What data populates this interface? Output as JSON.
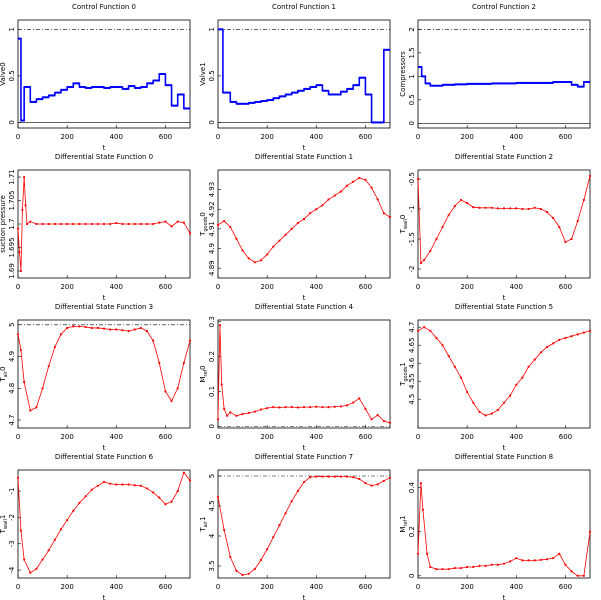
{
  "chart_data": [
    {
      "type": "line",
      "step": true,
      "title": "Control Function 0",
      "xlabel": "t",
      "ylabel": "Valve0",
      "color": "#0000ff",
      "x": [
        0,
        12,
        25,
        50,
        75,
        100,
        125,
        150,
        175,
        200,
        225,
        250,
        275,
        300,
        325,
        350,
        375,
        400,
        425,
        450,
        475,
        500,
        525,
        550,
        575,
        600,
        625,
        650,
        675
      ],
      "values": [
        0.9,
        0.02,
        0.38,
        0.22,
        0.25,
        0.27,
        0.29,
        0.32,
        0.35,
        0.38,
        0.42,
        0.38,
        0.37,
        0.38,
        0.38,
        0.37,
        0.38,
        0.38,
        0.36,
        0.39,
        0.37,
        0.38,
        0.42,
        0.45,
        0.52,
        0.4,
        0.18,
        0.3,
        0.15
      ],
      "xlim": [
        0,
        700
      ],
      "xticks": [
        0,
        200,
        400,
        600
      ],
      "ylim": [
        -0.06,
        1.1
      ],
      "yticks": [
        0,
        0.5,
        1
      ],
      "reference_lines": [
        {
          "value": 1,
          "style": "dashdot"
        },
        {
          "value": 0,
          "style": "solid"
        }
      ]
    },
    {
      "type": "line",
      "step": true,
      "title": "Control Function 1",
      "xlabel": "t",
      "ylabel": "Valve1",
      "color": "#0000ff",
      "x": [
        0,
        20,
        50,
        75,
        100,
        125,
        150,
        175,
        200,
        225,
        250,
        275,
        300,
        325,
        350,
        375,
        400,
        425,
        450,
        475,
        500,
        525,
        550,
        575,
        600,
        625,
        650,
        675
      ],
      "values": [
        1.0,
        0.32,
        0.22,
        0.2,
        0.2,
        0.21,
        0.22,
        0.23,
        0.24,
        0.26,
        0.28,
        0.3,
        0.32,
        0.34,
        0.36,
        0.38,
        0.4,
        0.34,
        0.3,
        0.3,
        0.33,
        0.36,
        0.4,
        0.48,
        0.3,
        0.0,
        0.0,
        0.78
      ],
      "xlim": [
        0,
        700
      ],
      "xticks": [
        0,
        200,
        400,
        600
      ],
      "ylim": [
        -0.06,
        1.1
      ],
      "yticks": [
        0,
        0.5,
        1
      ],
      "reference_lines": [
        {
          "value": 1,
          "style": "dashdot"
        },
        {
          "value": 0,
          "style": "solid"
        }
      ]
    },
    {
      "type": "line",
      "step": true,
      "title": "Control Function 2",
      "xlabel": "t",
      "ylabel": "Compressors",
      "color": "#0000ff",
      "x": [
        0,
        15,
        30,
        50,
        100,
        150,
        200,
        250,
        300,
        350,
        400,
        450,
        500,
        550,
        600,
        625,
        650,
        675
      ],
      "values": [
        1.2,
        1.0,
        0.85,
        0.8,
        0.82,
        0.83,
        0.84,
        0.84,
        0.85,
        0.85,
        0.86,
        0.86,
        0.86,
        0.88,
        0.88,
        0.82,
        0.78,
        0.88
      ],
      "xlim": [
        0,
        700
      ],
      "xticks": [
        0,
        200,
        400,
        600
      ],
      "ylim": [
        -0.1,
        2.2
      ],
      "yticks": [
        0,
        0.5,
        1,
        1.5,
        2
      ],
      "reference_lines": [
        {
          "value": 2,
          "style": "dashdot"
        },
        {
          "value": 0,
          "style": "solid"
        }
      ]
    },
    {
      "type": "line",
      "markers": true,
      "title": "Differential State Function 0",
      "xlabel": "t",
      "ylabel": "suction pressure",
      "color": "#ff0000",
      "x": [
        0,
        6,
        12,
        18,
        25,
        31,
        37,
        50,
        75,
        100,
        125,
        150,
        175,
        200,
        225,
        250,
        275,
        300,
        325,
        350,
        375,
        400,
        425,
        450,
        475,
        500,
        525,
        550,
        575,
        600,
        625,
        650,
        675,
        700
      ],
      "values": [
        1.699,
        1.694,
        1.69,
        1.703,
        1.71,
        1.704,
        1.7,
        1.7005,
        1.7,
        1.7,
        1.7,
        1.7,
        1.7,
        1.7,
        1.7,
        1.7,
        1.7,
        1.7,
        1.7,
        1.7,
        1.7,
        1.7002,
        1.7,
        1.7,
        1.7,
        1.7,
        1.7,
        1.7,
        1.7003,
        1.7005,
        1.6995,
        1.7005,
        1.7003,
        1.698
      ],
      "xlim": [
        0,
        700
      ],
      "xticks": [
        0,
        200,
        400,
        600
      ],
      "ylim": [
        1.6885,
        1.7115
      ],
      "yticks": [
        1.69,
        1.695,
        1.7,
        1.705,
        1.71
      ]
    },
    {
      "type": "line",
      "markers": true,
      "title": "Differential State Function 1",
      "xlabel": "t",
      "ylabel": [
        "T",
        "goods",
        "0"
      ],
      "color": "#ff0000",
      "x": [
        0,
        25,
        50,
        75,
        100,
        125,
        150,
        175,
        200,
        225,
        250,
        275,
        300,
        325,
        350,
        375,
        400,
        425,
        450,
        475,
        500,
        525,
        550,
        575,
        600,
        625,
        650,
        675,
        700
      ],
      "values": [
        4.912,
        4.914,
        4.911,
        4.905,
        4.899,
        4.895,
        4.893,
        4.894,
        4.897,
        4.901,
        4.904,
        4.907,
        4.91,
        4.913,
        4.915,
        4.918,
        4.92,
        4.922,
        4.925,
        4.927,
        4.929,
        4.932,
        4.934,
        4.936,
        4.935,
        4.931,
        4.925,
        4.918,
        4.916
      ],
      "xlim": [
        0,
        700
      ],
      "xticks": [
        0,
        200,
        400,
        600
      ],
      "ylim": [
        4.885,
        4.94
      ],
      "yticks": [
        4.89,
        4.9,
        4.91,
        4.92,
        4.93
      ]
    },
    {
      "type": "line",
      "markers": true,
      "title": "Differential State Function 2",
      "xlabel": "t",
      "ylabel": [
        "T",
        "wall",
        "0"
      ],
      "color": "#ff0000",
      "x": [
        0,
        12,
        25,
        50,
        75,
        100,
        125,
        150,
        175,
        200,
        225,
        250,
        275,
        300,
        325,
        350,
        375,
        400,
        425,
        450,
        475,
        500,
        525,
        550,
        575,
        600,
        625,
        650,
        675,
        700
      ],
      "values": [
        -0.5,
        -1.9,
        -1.85,
        -1.7,
        -1.5,
        -1.3,
        -1.1,
        -0.95,
        -0.85,
        -0.9,
        -0.97,
        -0.98,
        -0.98,
        -0.98,
        -0.99,
        -0.99,
        -0.99,
        -0.99,
        -1.0,
        -1.0,
        -0.98,
        -1.0,
        -1.05,
        -1.15,
        -1.3,
        -1.55,
        -1.5,
        -1.2,
        -0.85,
        -0.45
      ],
      "xlim": [
        0,
        700
      ],
      "xticks": [
        0,
        200,
        400,
        600
      ],
      "ylim": [
        -2.15,
        -0.35
      ],
      "yticks": [
        -2,
        -1.5,
        -1,
        -0.5
      ]
    },
    {
      "type": "line",
      "markers": true,
      "title": "Differential State Function 3",
      "xlabel": "t",
      "ylabel": [
        "T",
        "air",
        "0"
      ],
      "color": "#ff0000",
      "x": [
        0,
        12,
        25,
        50,
        75,
        100,
        125,
        150,
        175,
        200,
        225,
        250,
        275,
        300,
        325,
        350,
        375,
        400,
        425,
        450,
        475,
        500,
        525,
        550,
        575,
        600,
        625,
        650,
        675,
        700
      ],
      "values": [
        4.97,
        4.92,
        4.82,
        4.73,
        4.74,
        4.8,
        4.87,
        4.93,
        4.97,
        4.99,
        4.995,
        4.995,
        4.993,
        4.99,
        4.99,
        4.988,
        4.985,
        4.985,
        4.983,
        4.98,
        4.985,
        4.99,
        4.98,
        4.95,
        4.88,
        4.79,
        4.76,
        4.8,
        4.88,
        4.95
      ],
      "xlim": [
        0,
        700
      ],
      "xticks": [
        0,
        200,
        400,
        600
      ],
      "ylim": [
        4.675,
        5.015
      ],
      "yticks": [
        4.7,
        4.8,
        4.9,
        5
      ],
      "reference_lines": [
        {
          "value": 5,
          "style": "dashdot"
        }
      ]
    },
    {
      "type": "line",
      "markers": true,
      "title": "Differential State Function 4",
      "xlabel": "t",
      "ylabel": [
        "M",
        "ref",
        "0"
      ],
      "color": "#ff0000",
      "x": [
        0,
        8,
        15,
        25,
        37,
        50,
        75,
        100,
        125,
        150,
        175,
        200,
        225,
        250,
        275,
        300,
        325,
        350,
        375,
        400,
        425,
        450,
        475,
        500,
        525,
        550,
        575,
        600,
        625,
        650,
        675,
        700
      ],
      "values": [
        0.02,
        0.29,
        0.12,
        0.05,
        0.03,
        0.04,
        0.03,
        0.035,
        0.038,
        0.042,
        0.048,
        0.052,
        0.055,
        0.054,
        0.055,
        0.055,
        0.054,
        0.055,
        0.055,
        0.056,
        0.055,
        0.055,
        0.056,
        0.057,
        0.06,
        0.068,
        0.08,
        0.05,
        0.02,
        0.032,
        0.015,
        0.01
      ],
      "xlim": [
        0,
        700
      ],
      "xticks": [
        0,
        200,
        400,
        600
      ],
      "ylim": [
        -0.005,
        0.305
      ],
      "yticks": [
        0,
        0.1,
        0.2,
        0.3
      ],
      "reference_lines": [
        {
          "value": 0,
          "style": "dashdot"
        }
      ]
    },
    {
      "type": "line",
      "markers": true,
      "title": "Differential State Function 5",
      "xlabel": "t",
      "ylabel": [
        "T",
        "goods",
        "1"
      ],
      "color": "#ff0000",
      "x": [
        0,
        25,
        50,
        75,
        100,
        125,
        150,
        175,
        200,
        225,
        250,
        275,
        300,
        325,
        350,
        375,
        400,
        425,
        450,
        475,
        500,
        525,
        550,
        575,
        600,
        625,
        650,
        675,
        700
      ],
      "values": [
        4.69,
        4.7,
        4.69,
        4.67,
        4.65,
        4.62,
        4.59,
        4.56,
        4.52,
        4.49,
        4.465,
        4.455,
        4.46,
        4.47,
        4.49,
        4.51,
        4.54,
        4.56,
        4.59,
        4.61,
        4.63,
        4.645,
        4.655,
        4.665,
        4.67,
        4.675,
        4.68,
        4.685,
        4.69
      ],
      "xlim": [
        0,
        700
      ],
      "xticks": [
        0,
        200,
        400,
        600
      ],
      "ylim": [
        4.42,
        4.72
      ],
      "yticks": [
        4.5,
        4.55,
        4.6,
        4.65,
        4.7
      ]
    },
    {
      "type": "line",
      "markers": true,
      "title": "Differential State Function 6",
      "xlabel": "t",
      "ylabel": [
        "T",
        "wall",
        "1"
      ],
      "color": "#ff0000",
      "x": [
        0,
        12,
        25,
        50,
        75,
        100,
        125,
        150,
        175,
        200,
        225,
        250,
        275,
        300,
        325,
        350,
        375,
        400,
        425,
        450,
        475,
        500,
        525,
        550,
        575,
        600,
        625,
        650,
        675,
        700
      ],
      "values": [
        -0.5,
        -2.5,
        -3.6,
        -4.1,
        -3.95,
        -3.6,
        -3.25,
        -2.85,
        -2.45,
        -2.1,
        -1.75,
        -1.45,
        -1.2,
        -0.95,
        -0.8,
        -0.65,
        -0.72,
        -0.75,
        -0.75,
        -0.75,
        -0.78,
        -0.8,
        -0.9,
        -1.05,
        -1.25,
        -1.5,
        -1.4,
        -1.0,
        -0.3,
        -0.6
      ],
      "xlim": [
        0,
        700
      ],
      "xticks": [
        0,
        200,
        400,
        600
      ],
      "ylim": [
        -4.3,
        -0.2
      ],
      "yticks": [
        -4,
        -3,
        -2,
        -1
      ]
    },
    {
      "type": "line",
      "markers": true,
      "title": "Differential State Function 7",
      "xlabel": "t",
      "ylabel": [
        "T",
        "air",
        "1"
      ],
      "color": "#ff0000",
      "x": [
        0,
        25,
        50,
        75,
        100,
        125,
        150,
        175,
        200,
        225,
        250,
        275,
        300,
        325,
        350,
        375,
        400,
        425,
        450,
        475,
        500,
        525,
        550,
        575,
        600,
        625,
        650,
        675,
        700
      ],
      "values": [
        4.65,
        4.1,
        3.65,
        3.42,
        3.35,
        3.37,
        3.45,
        3.6,
        3.78,
        3.98,
        4.18,
        4.38,
        4.58,
        4.75,
        4.9,
        4.98,
        4.99,
        4.99,
        4.99,
        4.99,
        4.99,
        4.99,
        4.98,
        4.95,
        4.88,
        4.84,
        4.86,
        4.92,
        4.97
      ],
      "xlim": [
        0,
        700
      ],
      "xticks": [
        0,
        200,
        400,
        600
      ],
      "ylim": [
        3.3,
        5.1
      ],
      "yticks": [
        3.5,
        4,
        4.5,
        5
      ],
      "reference_lines": [
        {
          "value": 5,
          "style": "dashdot"
        }
      ]
    },
    {
      "type": "line",
      "markers": true,
      "title": "Differential State Function 8",
      "xlabel": "t",
      "ylabel": [
        "M",
        "ref",
        "1"
      ],
      "color": "#ff0000",
      "x": [
        0,
        12,
        20,
        37,
        50,
        75,
        100,
        125,
        150,
        175,
        200,
        225,
        250,
        275,
        300,
        325,
        350,
        375,
        400,
        425,
        450,
        475,
        500,
        525,
        550,
        575,
        600,
        625,
        650,
        675,
        700
      ],
      "values": [
        0.1,
        0.42,
        0.3,
        0.1,
        0.04,
        0.03,
        0.03,
        0.03,
        0.035,
        0.035,
        0.04,
        0.04,
        0.045,
        0.045,
        0.05,
        0.05,
        0.055,
        0.065,
        0.08,
        0.07,
        0.07,
        0.07,
        0.072,
        0.075,
        0.08,
        0.1,
        0.05,
        0.02,
        0.0,
        0.0,
        0.2
      ],
      "xlim": [
        0,
        700
      ],
      "xticks": [
        0,
        200,
        400,
        600
      ],
      "ylim": [
        -0.01,
        0.48
      ],
      "yticks": [
        0,
        0.2,
        0.4
      ]
    }
  ]
}
